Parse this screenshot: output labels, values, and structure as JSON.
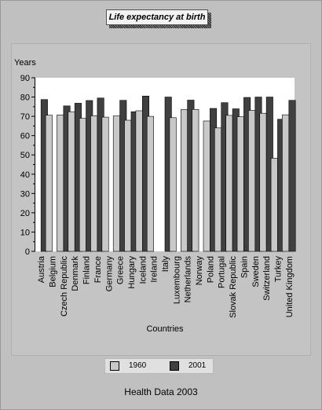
{
  "title": "Life expectancy at birth",
  "footer": "Health Data 2003",
  "colors": {
    "series_1960": "#c8c8c8",
    "series_2001": "#404040",
    "plot_bg": "#ffffff",
    "panel_bg": "#c4c4c4"
  },
  "chart_data": {
    "type": "bar",
    "title": "Life expectancy at birth",
    "ylabel": "Years",
    "xlabel": "Countries",
    "ylim": [
      0,
      90
    ],
    "yticks": [
      0,
      10,
      20,
      30,
      40,
      50,
      60,
      70,
      80,
      90
    ],
    "grid": false,
    "legend_position": "bottom",
    "categories": [
      "Austria",
      "Belgium",
      "Czech Republic",
      "Denmark",
      "Finland",
      "France",
      "Germany",
      "Greece",
      "Hungary",
      "Iceland",
      "Ireland",
      "Italy",
      "Luxembourg",
      "Netherlands",
      "Norway",
      "Poland",
      "Portugal",
      "Slovak Republic",
      "Spain",
      "Sweden",
      "Switzerland",
      "Turkey",
      "United Kingdom"
    ],
    "series": [
      {
        "name": "1960",
        "values": [
          null,
          70.6,
          70.7,
          72.4,
          69.0,
          70.3,
          69.6,
          70.2,
          68.0,
          72.9,
          70.0,
          null,
          69.3,
          73.5,
          73.6,
          67.6,
          64.0,
          70.5,
          69.8,
          73.1,
          71.6,
          48.3,
          70.8
        ]
      },
      {
        "name": "2001",
        "values": [
          78.7,
          null,
          75.4,
          76.8,
          78.2,
          79.5,
          null,
          78.3,
          72.4,
          80.5,
          null,
          80.0,
          null,
          78.4,
          null,
          74.1,
          77.1,
          73.9,
          79.8,
          80.0,
          80.0,
          68.5,
          78.3
        ]
      }
    ]
  }
}
